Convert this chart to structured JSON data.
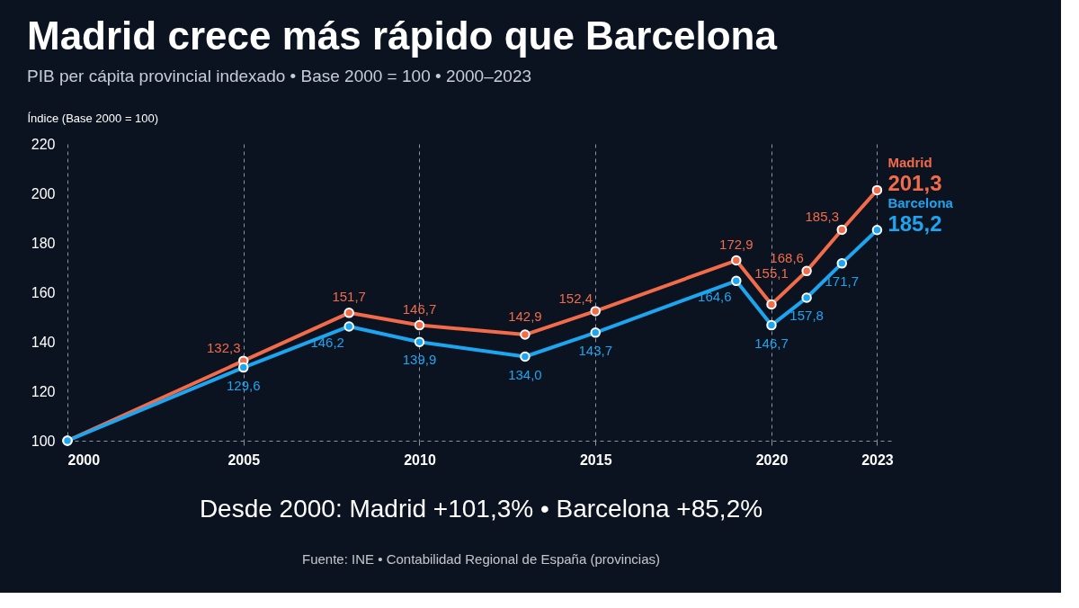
{
  "chart_data": {
    "type": "line",
    "title": "Madrid crece más rápido que Barcelona",
    "subtitle": "PIB per cápita provincial indexado • Base 2000 = 100 • 2000–2023",
    "ylabel": "Índice (Base 2000 = 100)",
    "x": [
      2000,
      2005,
      2008,
      2010,
      2013,
      2015,
      2019,
      2020,
      2021,
      2022,
      2023
    ],
    "series": [
      {
        "name": "Madrid",
        "color": "#f26b4a",
        "values": [
          100,
          132.3,
          151.7,
          146.7,
          142.9,
          152.4,
          172.9,
          155.1,
          168.6,
          185.3,
          201.3
        ],
        "value_labels": [
          null,
          "132,3",
          "151,7",
          "146,7",
          "142,9",
          "152,4",
          "172,9",
          "155,1",
          "168,6",
          "185,3",
          "201,3"
        ]
      },
      {
        "name": "Barcelona",
        "color": "#1ea5f0",
        "values": [
          100,
          129.6,
          146.2,
          139.9,
          134.0,
          143.7,
          164.6,
          146.7,
          157.8,
          171.7,
          185.2
        ],
        "value_labels": [
          null,
          "129,6",
          "146,2",
          "139,9",
          "134,0",
          "143,7",
          "164,6",
          "146,7",
          "157,8",
          "171,7",
          "185,2"
        ]
      }
    ],
    "xlim": [
      2000,
      2023.5
    ],
    "xticks": [
      2000,
      2005,
      2010,
      2015,
      2020,
      2023
    ],
    "ylim": [
      100,
      220
    ],
    "yticks": [
      100,
      120,
      140,
      160,
      180,
      200,
      220
    ],
    "grid": "x",
    "legend": false,
    "marker": "circle",
    "line_style": "solid",
    "annotations": [
      "Desde 2000:  Madrid +101,3%  •  Barcelona +85,2%",
      "Fuente: INE • Contabilidad Regional de España (provincias)"
    ]
  }
}
